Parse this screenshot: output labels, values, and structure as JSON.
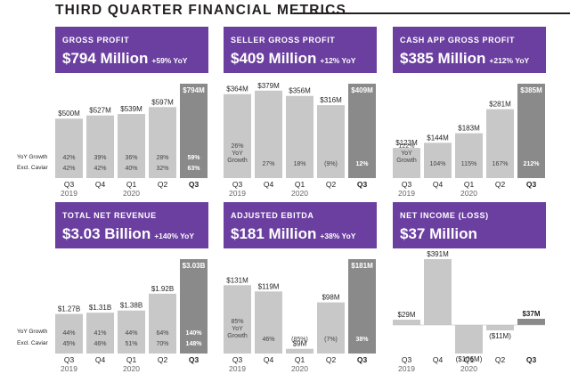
{
  "page": {
    "title": "THIRD QUARTER FINANCIAL METRICS",
    "row_labels": {
      "growth": "YoY Growth",
      "caviar": "Excl. Caviar"
    }
  },
  "chart_data": [
    {
      "type": "bar",
      "title": "GROSS PROFIT",
      "headline": "$794 Million",
      "headline_yoy": "+59% YoY",
      "categories": [
        "Q3",
        "Q4",
        "Q1",
        "Q2",
        "Q3"
      ],
      "years": [
        "2019",
        "",
        "2020",
        "",
        ""
      ],
      "values": [
        500,
        527,
        539,
        597,
        794
      ],
      "value_labels": [
        "$500M",
        "$527M",
        "$539M",
        "$597M",
        "$794M"
      ],
      "yoy_growth": [
        "42%",
        "39%",
        "36%",
        "28%",
        "59%"
      ],
      "excl_caviar": [
        "42%",
        "42%",
        "40%",
        "32%",
        "63%"
      ],
      "ylim": [
        0,
        794
      ]
    },
    {
      "type": "bar",
      "title": "SELLER GROSS PROFIT",
      "headline": "$409 Million",
      "headline_yoy": "+12% YoY",
      "categories": [
        "Q3",
        "Q4",
        "Q1",
        "Q2",
        "Q3"
      ],
      "years": [
        "2019",
        "",
        "2020",
        "",
        ""
      ],
      "values": [
        364,
        379,
        356,
        316,
        409
      ],
      "value_labels": [
        "$364M",
        "$379M",
        "$356M",
        "$316M",
        "$409M"
      ],
      "yoy_growth": [
        "26% YoY Growth",
        "27%",
        "18%",
        "(9%)",
        "12%"
      ],
      "ylim": [
        0,
        409
      ]
    },
    {
      "type": "bar",
      "title": "CASH APP GROSS PROFIT",
      "headline": "$385 Million",
      "headline_yoy": "+212% YoY",
      "categories": [
        "Q3",
        "Q4",
        "Q1",
        "Q2",
        "Q3"
      ],
      "years": [
        "2019",
        "",
        "2020",
        "",
        ""
      ],
      "values": [
        123,
        144,
        183,
        281,
        385
      ],
      "value_labels": [
        "$123M",
        "$144M",
        "$183M",
        "$281M",
        "$385M"
      ],
      "yoy_growth": [
        "122% YoY Growth",
        "104%",
        "115%",
        "167%",
        "212%"
      ],
      "ylim": [
        0,
        385
      ]
    },
    {
      "type": "bar",
      "title": "TOTAL NET REVENUE",
      "headline": "$3.03 Billion",
      "headline_yoy": "+140% YoY",
      "categories": [
        "Q3",
        "Q4",
        "Q1",
        "Q2",
        "Q3"
      ],
      "years": [
        "2019",
        "",
        "2020",
        "",
        ""
      ],
      "values": [
        1.27,
        1.31,
        1.38,
        1.92,
        3.03
      ],
      "value_labels": [
        "$1.27B",
        "$1.31B",
        "$1.38B",
        "$1.92B",
        "$3.03B"
      ],
      "yoy_growth": [
        "44%",
        "41%",
        "44%",
        "64%",
        "140%"
      ],
      "excl_caviar": [
        "45%",
        "46%",
        "51%",
        "70%",
        "148%"
      ],
      "ylim": [
        0,
        3.03
      ]
    },
    {
      "type": "bar",
      "title": "ADJUSTED EBITDA",
      "headline": "$181 Million",
      "headline_yoy": "+38% YoY",
      "categories": [
        "Q3",
        "Q4",
        "Q1",
        "Q2",
        "Q3"
      ],
      "years": [
        "2019",
        "",
        "2020",
        "",
        ""
      ],
      "values": [
        131,
        119,
        9,
        98,
        181
      ],
      "value_labels": [
        "$131M",
        "$119M",
        "$9M",
        "$98M",
        "$181M"
      ],
      "yoy_growth": [
        "85% YoY Growth",
        "46%",
        "(85%)",
        "(7%)",
        "38%"
      ],
      "ylim": [
        0,
        181
      ]
    },
    {
      "type": "bar",
      "title": "NET INCOME (LOSS)",
      "headline": "$37 Million",
      "headline_yoy": "",
      "categories": [
        "Q3",
        "Q4",
        "Q1",
        "Q2",
        "Q3"
      ],
      "years": [
        "2019",
        "",
        "2020",
        "",
        ""
      ],
      "values": [
        29,
        391,
        -106,
        -11,
        37
      ],
      "value_labels": [
        "$29M",
        "$391M",
        "($106M)",
        "($11M)",
        "$37M"
      ],
      "ylim": [
        -106,
        391
      ]
    }
  ],
  "colors": {
    "header": "#6b3fa0",
    "bar": "#c8c8c8",
    "bar_current": "#8a8a8a",
    "text": "#231f20",
    "cell_text": "#444444",
    "cell_text_current": "#ffffff"
  }
}
